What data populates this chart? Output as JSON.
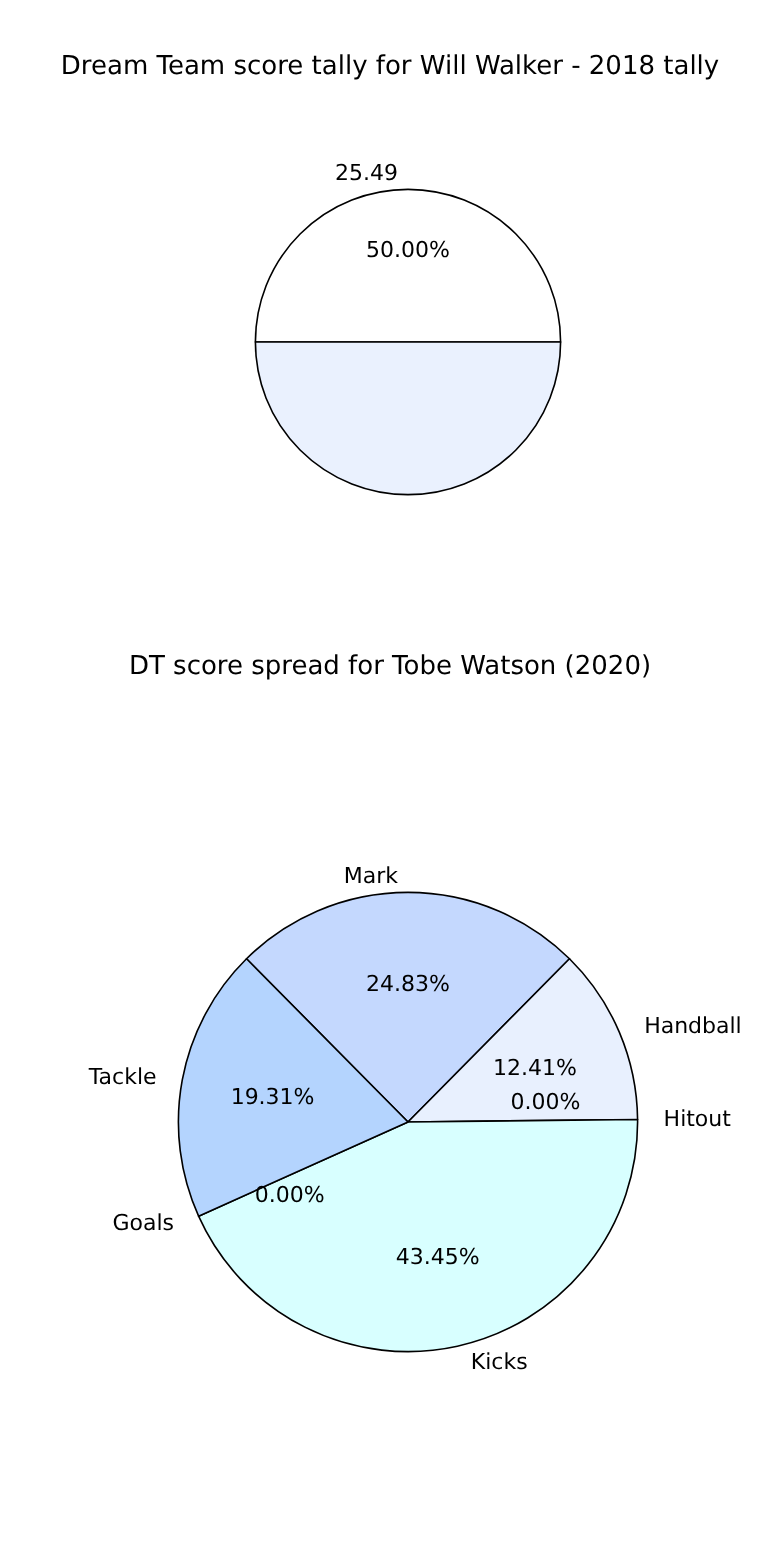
{
  "chart_data": [
    {
      "type": "pie",
      "title": "Dream Team score tally for Will Walker - 2018 tally",
      "categories": [
        "25.49",
        null
      ],
      "values": [
        50,
        50
      ],
      "colors": [
        "#ffffff",
        "#eaf1fe"
      ],
      "value_labels": [
        "50.00%",
        null
      ]
    },
    {
      "type": "pie",
      "title": "DT score spread for Tobe Watson (2020)",
      "categories": [
        "Mark",
        "Handball",
        "Hitout",
        "Kicks",
        "Goals",
        "Tackle"
      ],
      "values": [
        24.83,
        12.41,
        0,
        43.45,
        0,
        19.31
      ],
      "colors": [
        "#c4d8fe",
        "#e8f0fe",
        "#f4f7ff",
        "#d8ffff",
        "#ffffff",
        "#b4d4fe"
      ],
      "value_labels": [
        "24.83%",
        "12.41%",
        "0.00%",
        "43.45%",
        "0.00%",
        "19.31%"
      ]
    }
  ]
}
